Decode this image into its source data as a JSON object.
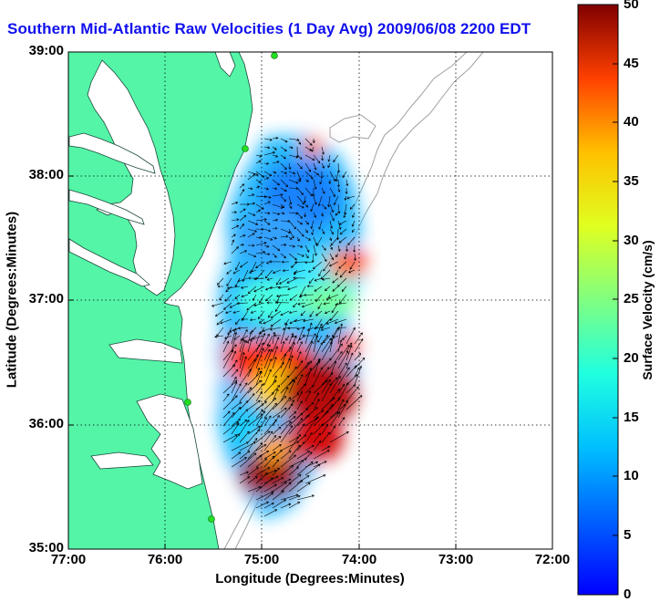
{
  "title": "Southern Mid-Atlantic Raw Velocities (1 Day Avg) 2009/06/08 2200 EDT",
  "map": {
    "x_axis": {
      "label": "Longitude (Degrees:Minutes)",
      "ticks": [
        "77:00",
        "76:00",
        "75:00",
        "74:00",
        "73:00",
        "72:00"
      ],
      "range": [
        -77,
        -72
      ]
    },
    "y_axis": {
      "label": "Latitude (Degrees:Minutes)",
      "ticks": [
        "39:00",
        "38:00",
        "37:00",
        "36:00",
        "35:00"
      ],
      "range": [
        35,
        39
      ]
    },
    "grid": "dotted",
    "colors": {
      "land": "#55f5a8",
      "water": "#ffffff",
      "bathymetry_contour": "#a0a0a0",
      "station_marker": "#22dd22",
      "arrow": "#000000",
      "title": "#1010ee"
    }
  },
  "colorbar": {
    "label": "Surface Velocity (cm/s)",
    "ticks": [
      "0",
      "5",
      "10",
      "15",
      "20",
      "25",
      "30",
      "35",
      "40",
      "45",
      "50"
    ],
    "range": [
      0,
      50
    ],
    "colormap": "jet"
  }
}
